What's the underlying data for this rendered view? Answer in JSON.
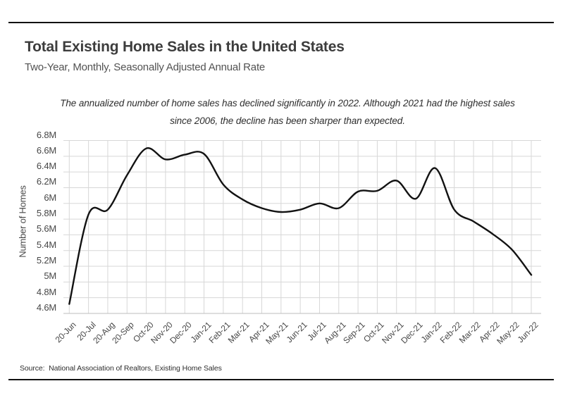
{
  "page": {
    "background": "#ffffff"
  },
  "header": {
    "title": "Total Existing Home Sales in the United States",
    "subtitle": "Two-Year, Monthly, Seasonally Adjusted Annual Rate"
  },
  "annotation": {
    "line1": "The annualized number of home sales has declined significantly in 2022. Although 2021 had the highest sales",
    "line2": "since 2006, the decline has been sharper than expected."
  },
  "chart_data": {
    "type": "line",
    "title": "Total Existing Home Sales in the United States",
    "xlabel": "",
    "ylabel": "Number of Homes",
    "categories": [
      "20-Jun",
      "20-Jul",
      "20-Aug",
      "20-Sep",
      "Oct-20",
      "Nov-20",
      "Dec-20",
      "Jan-21",
      "Feb-21",
      "Mar-21",
      "Apr-21",
      "May-21",
      "Jun-21",
      "Jul-21",
      "Aug-21",
      "Sep-21",
      "Oct-21",
      "Nov-21",
      "Dec-21",
      "Jan-22",
      "Feb-22",
      "Mar-22",
      "Apr-22",
      "May-22",
      "Jun-22"
    ],
    "values": [
      4.72,
      5.86,
      5.92,
      6.36,
      6.7,
      6.56,
      6.62,
      6.63,
      6.24,
      6.05,
      5.94,
      5.89,
      5.92,
      6.0,
      5.94,
      6.15,
      6.16,
      6.29,
      6.06,
      6.45,
      5.92,
      5.77,
      5.61,
      5.41,
      5.09
    ],
    "unit": "M",
    "ylim": [
      4.6,
      6.8
    ],
    "ytick_step": 0.2,
    "ytick_labels": [
      "6.8M",
      "6.6M",
      "6.4M",
      "6.2M",
      "6M",
      "5.8M",
      "5.6M",
      "5.4M",
      "5.2M",
      "5M",
      "4.8M",
      "4.6M"
    ],
    "grid": true,
    "legend_position": "none",
    "line_color": "#121212",
    "gridline_color": "#d7d7d7",
    "axis_line_color": "#bdbdbd",
    "tick_label_color": "#4a4a4a"
  },
  "source": {
    "text": "Source:  National Association of Realtors, Existing Home Sales"
  }
}
